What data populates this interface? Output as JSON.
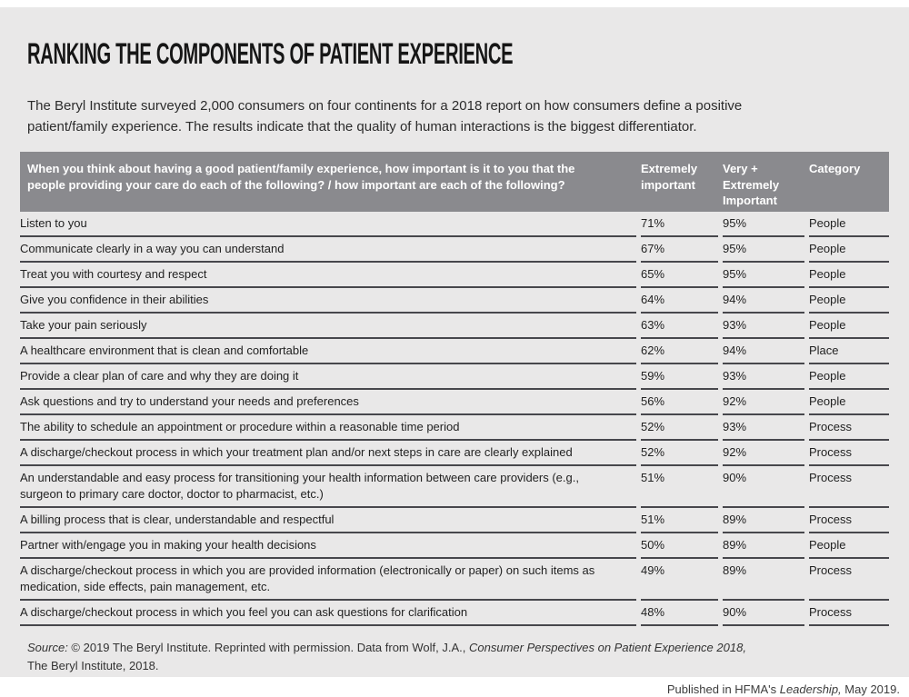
{
  "header": {
    "title": "RANKING THE COMPONENTS OF PATIENT EXPERIENCE",
    "intro_line1": "The Beryl Institute surveyed 2,000 consumers on four continents for a 2018 report on how consumers define a positive",
    "intro_line2": "patient/family experience. The results indicate that the quality of human interactions is the biggest differentiator."
  },
  "table": {
    "header": {
      "question_line1": "When you think about having a good patient/family experience, how important is it to you that the",
      "question_line2": "people providing your care do each of the following? / how important are each of the following?",
      "col_extremely": "Extremely important",
      "col_very": "Very + Extremely Important",
      "col_category": "Category"
    },
    "rows": [
      {
        "question": "Listen to you",
        "extremely": "71%",
        "very_extremely": "95%",
        "category": "People"
      },
      {
        "question": "Communicate clearly in a way you can understand",
        "extremely": "67%",
        "very_extremely": "95%",
        "category": "People"
      },
      {
        "question": "Treat you with courtesy and respect",
        "extremely": "65%",
        "very_extremely": "95%",
        "category": "People"
      },
      {
        "question": "Give you confidence in their abilities",
        "extremely": "64%",
        "very_extremely": "94%",
        "category": "People"
      },
      {
        "question": "Take your pain seriously",
        "extremely": "63%",
        "very_extremely": "93%",
        "category": "People"
      },
      {
        "question": "A healthcare environment that is clean and comfortable",
        "extremely": "62%",
        "very_extremely": "94%",
        "category": "Place"
      },
      {
        "question": "Provide a clear plan of care and why they are doing it",
        "extremely": "59%",
        "very_extremely": "93%",
        "category": "People"
      },
      {
        "question": "Ask questions and try to understand your needs and preferences",
        "extremely": "56%",
        "very_extremely": "92%",
        "category": "People"
      },
      {
        "question": "The ability to schedule an appointment or procedure within a reasonable time period",
        "extremely": "52%",
        "very_extremely": "93%",
        "category": "Process"
      },
      {
        "question": "A discharge/checkout process in which your treatment plan and/or next steps in care are clearly explained",
        "extremely": "52%",
        "very_extremely": "92%",
        "category": "Process"
      },
      {
        "question": "An understandable and easy process for transitioning your health information between care providers (e.g., surgeon to primary care doctor, doctor to pharmacist, etc.)",
        "extremely": "51%",
        "very_extremely": "90%",
        "category": "Process"
      },
      {
        "question": "A billing process that is clear, understandable and respectful",
        "extremely": "51%",
        "very_extremely": "89%",
        "category": "Process"
      },
      {
        "question": "Partner with/engage you in making your health decisions",
        "extremely": "50%",
        "very_extremely": "89%",
        "category": "People"
      },
      {
        "question": "A discharge/checkout process in which you are provided information (electronically or paper) on such items as medication, side effects, pain management, etc.",
        "extremely": "49%",
        "very_extremely": "89%",
        "category": "Process"
      },
      {
        "question": "A discharge/checkout process in which you feel you can ask questions for clarification",
        "extremely": "48%",
        "very_extremely": "90%",
        "category": "Process"
      }
    ]
  },
  "source": {
    "label": "Source: ",
    "text": "© 2019 The Beryl Institute. Reprinted with permission. Data from Wolf, J.A., ",
    "work": "Consumer Perspectives on Patient Experience 2018,",
    "line2": "The Beryl Institute, 2018."
  },
  "footer": {
    "pre": "Published in HFMA's ",
    "journal": "Leadership,",
    "post": " May 2019."
  },
  "colors": {
    "card_bg": "#e9e8e8",
    "table_header_bg": "#8a8a8e",
    "table_header_text": "#ffffff",
    "row_rule": "#47474c",
    "title_text": "#161616"
  },
  "chart_data": {
    "type": "table",
    "title": "RANKING THE COMPONENTS OF PATIENT EXPERIENCE",
    "subtitle": "The Beryl Institute surveyed 2,000 consumers on four continents for a 2018 report on how consumers define a positive patient/family experience. The results indicate that the quality of human interactions is the biggest differentiator.",
    "columns": [
      "When you think about having a good patient/family experience, how important is it to you that the people providing your care do each of the following? / how important are each of the following?",
      "Extremely important",
      "Very + Extremely Important",
      "Category"
    ],
    "rows": [
      [
        "Listen to you",
        "71%",
        "95%",
        "People"
      ],
      [
        "Communicate clearly in a way you can understand",
        "67%",
        "95%",
        "People"
      ],
      [
        "Treat you with courtesy and respect",
        "65%",
        "95%",
        "People"
      ],
      [
        "Give you confidence in their abilities",
        "64%",
        "94%",
        "People"
      ],
      [
        "Take your pain seriously",
        "63%",
        "93%",
        "People"
      ],
      [
        "A healthcare environment that is clean and comfortable",
        "62%",
        "94%",
        "Place"
      ],
      [
        "Provide a clear plan of care and why they are doing it",
        "59%",
        "93%",
        "People"
      ],
      [
        "Ask questions and try to understand your needs and preferences",
        "56%",
        "92%",
        "People"
      ],
      [
        "The ability to schedule an appointment or procedure within a reasonable time period",
        "52%",
        "93%",
        "Process"
      ],
      [
        "A discharge/checkout process in which your treatment plan and/or next steps in care are clearly explained",
        "52%",
        "92%",
        "Process"
      ],
      [
        "An understandable and easy process for transitioning your health information between care providers (e.g., surgeon to primary care doctor, doctor to pharmacist, etc.)",
        "51%",
        "90%",
        "Process"
      ],
      [
        "A billing process that is clear, understandable and respectful",
        "51%",
        "89%",
        "Process"
      ],
      [
        "Partner with/engage you in making your health decisions",
        "50%",
        "89%",
        "People"
      ],
      [
        "A discharge/checkout process in which you are provided information (electronically or paper) on such items as medication, side effects, pain management, etc.",
        "49%",
        "89%",
        "Process"
      ],
      [
        "A discharge/checkout process in which you feel you can ask questions for clarification",
        "48%",
        "90%",
        "Process"
      ]
    ]
  }
}
